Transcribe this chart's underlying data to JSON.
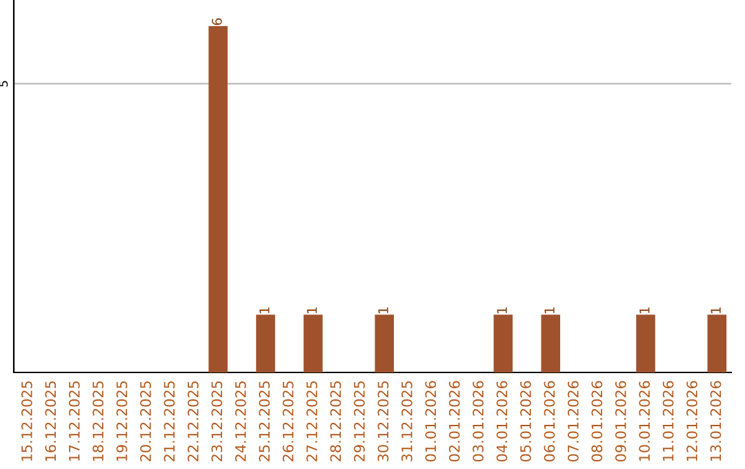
{
  "chart_data": {
    "type": "bar",
    "categories": [
      "15.12.2025",
      "16.12.2025",
      "17.12.2025",
      "18.12.2025",
      "19.12.2025",
      "20.12.2025",
      "21.12.2025",
      "22.12.2025",
      "23.12.2025",
      "24.12.2025",
      "25.12.2025",
      "26.12.2025",
      "27.12.2025",
      "28.12.2025",
      "29.12.2025",
      "30.12.2025",
      "31.12.2025",
      "01.01.2026",
      "02.01.2026",
      "03.01.2026",
      "04.01.2026",
      "05.01.2026",
      "06.01.2026",
      "07.01.2026",
      "08.01.2026",
      "09.01.2026",
      "10.01.2026",
      "11.01.2026",
      "12.01.2026",
      "13.01.2026"
    ],
    "values": [
      0,
      0,
      0,
      0,
      0,
      0,
      0,
      0,
      6,
      0,
      1,
      0,
      1,
      0,
      0,
      1,
      0,
      0,
      0,
      0,
      1,
      0,
      1,
      0,
      0,
      0,
      1,
      0,
      0,
      1
    ],
    "value_labels": [
      null,
      null,
      null,
      null,
      null,
      null,
      null,
      null,
      "6",
      null,
      "1",
      null,
      "1",
      null,
      null,
      "1",
      null,
      null,
      null,
      null,
      "1",
      null,
      "1",
      null,
      null,
      null,
      "1",
      null,
      null,
      "1"
    ],
    "color": "#a0522d",
    "ylim": [
      0,
      6.45
    ],
    "yticks": [
      5
    ],
    "grid": "y"
  }
}
